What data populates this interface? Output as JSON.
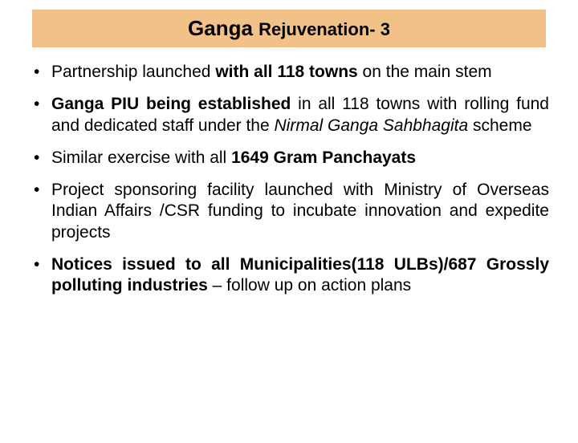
{
  "colors": {
    "banner_bg": "#f2c188",
    "text": "#000000",
    "page_bg": "#ffffff"
  },
  "typography": {
    "font_family": "Arial",
    "title_main_size_pt": 26,
    "title_sub_size_pt": 22,
    "body_size_pt": 21,
    "line_height": 1.25
  },
  "title": {
    "main": "Ganga ",
    "sub": "Rejuvenation- 3"
  },
  "bullets": [
    {
      "segments": [
        {
          "text": "Partnership launched ",
          "bold": false,
          "italic": false
        },
        {
          "text": "with all 118 towns",
          "bold": true,
          "italic": false
        },
        {
          "text": " on the main stem",
          "bold": false,
          "italic": false
        }
      ],
      "tight": false
    },
    {
      "segments": [
        {
          "text": "Ganga PIU being established",
          "bold": true,
          "italic": false
        },
        {
          "text": " in all 118 towns with rolling fund and dedicated staff under the ",
          "bold": false,
          "italic": false
        },
        {
          "text": "Nirmal Ganga Sahbhagita",
          "bold": false,
          "italic": true
        },
        {
          "text": " scheme",
          "bold": false,
          "italic": false
        }
      ],
      "tight": false
    },
    {
      "segments": [
        {
          "text": "Similar exercise with all ",
          "bold": false,
          "italic": false
        },
        {
          "text": "1649 Gram Panchayats",
          "bold": true,
          "italic": false
        }
      ],
      "tight": true
    },
    {
      "segments": [
        {
          "text": "Project sponsoring facility launched with Ministry of Overseas Indian Affairs /CSR funding to incubate innovation and expedite projects",
          "bold": false,
          "italic": false
        }
      ],
      "tight": false
    },
    {
      "segments": [
        {
          "text": "Notices issued to all Municipalities(118 ULBs)/687 Grossly polluting industries",
          "bold": true,
          "italic": false
        },
        {
          "text": " – follow up on action plans",
          "bold": false,
          "italic": false
        }
      ],
      "tight": false
    }
  ]
}
